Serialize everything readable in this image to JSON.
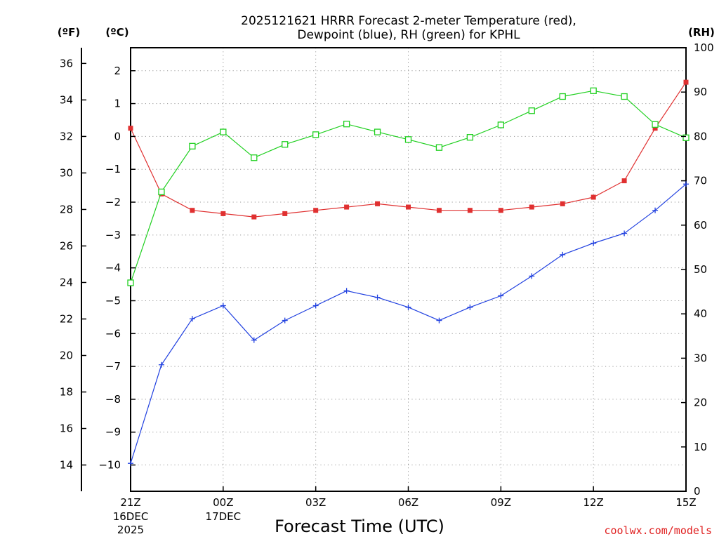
{
  "chart_data": {
    "type": "line",
    "title_line1": "2025121621 HRRR Forecast 2-meter Temperature (red),",
    "title_line2": "Dewpoint (blue), RH (green) for KPHL",
    "xlabel": "Forecast Time (UTC)",
    "credit": "coolwx.com/models",
    "units": {
      "fahrenheit": "(ºF)",
      "celsius": "(ºC)",
      "rh": "(RH)"
    },
    "x_ticks": [
      {
        "hour": 0,
        "label": "21Z",
        "sub1": "16DEC",
        "sub2": "2025"
      },
      {
        "hour": 3,
        "label": "00Z",
        "sub1": "17DEC",
        "sub2": ""
      },
      {
        "hour": 6,
        "label": "03Z",
        "sub1": "",
        "sub2": ""
      },
      {
        "hour": 9,
        "label": "06Z",
        "sub1": "",
        "sub2": ""
      },
      {
        "hour": 12,
        "label": "09Z",
        "sub1": "",
        "sub2": ""
      },
      {
        "hour": 15,
        "label": "12Z",
        "sub1": "",
        "sub2": ""
      },
      {
        "hour": 18,
        "label": "15Z",
        "sub1": "",
        "sub2": ""
      }
    ],
    "x_range": [
      0,
      18
    ],
    "celsius_range": [
      -10.8,
      2.7
    ],
    "celsius_ticks": [
      "2",
      "1",
      "0",
      "−1",
      "−2",
      "−3",
      "−4",
      "−5",
      "−6",
      "−7",
      "−8",
      "−9",
      "−10"
    ],
    "fahrenheit_ticks": [
      "36",
      "34",
      "32",
      "30",
      "28",
      "26",
      "24",
      "22",
      "20",
      "18",
      "16",
      "14"
    ],
    "rh_range": [
      0,
      100
    ],
    "rh_ticks": [
      "100",
      "90",
      "80",
      "70",
      "60",
      "50",
      "40",
      "30",
      "20",
      "10",
      "0"
    ],
    "series": [
      {
        "name": "Temperature",
        "unit": "C",
        "color": "#e03030",
        "marker": "filled-square",
        "values": [
          0.25,
          -1.75,
          -2.25,
          -2.35,
          -2.45,
          -2.35,
          -2.25,
          -2.15,
          -2.05,
          -2.15,
          -2.25,
          -2.25,
          -2.25,
          -2.15,
          -2.05,
          -1.85,
          -1.35,
          0.25,
          1.65
        ]
      },
      {
        "name": "Dewpoint",
        "unit": "C",
        "color": "#2040e0",
        "marker": "plus",
        "values": [
          -9.95,
          -6.95,
          -5.55,
          -5.15,
          -6.2,
          -5.6,
          -5.15,
          -4.7,
          -4.9,
          -5.2,
          -5.6,
          -5.2,
          -4.85,
          -4.25,
          -3.6,
          -3.25,
          -2.95,
          -2.25,
          -1.45
        ]
      },
      {
        "name": "RH",
        "unit": "%",
        "color": "#20d020",
        "marker": "open-square",
        "values": [
          47,
          67.5,
          77.8,
          81,
          75.2,
          78.2,
          80.4,
          82.8,
          81,
          79.3,
          77.5,
          79.8,
          82.6,
          85.8,
          89,
          90.3,
          89,
          82.7,
          79.7
        ]
      }
    ]
  }
}
